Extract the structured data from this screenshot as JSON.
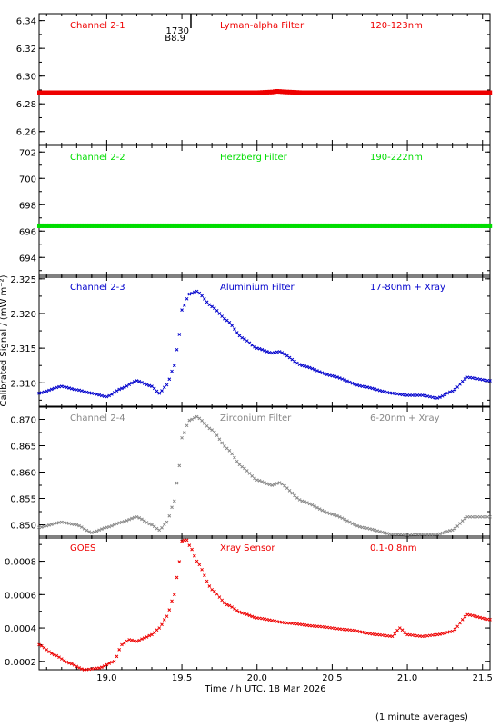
{
  "figure": {
    "ylabel": "Calibrated Signal / (mW m⁻²)",
    "xlabel": "Time / h UTC, 18 Mar 2026",
    "footnote": "(1 minute averages)",
    "marker": {
      "time_label": "1730",
      "value_label": "B8.9"
    },
    "x_ticks": [
      "19.0",
      "19.5",
      "20.0",
      "20.5",
      "21.0",
      "21.5"
    ]
  },
  "chart_data": [
    {
      "type": "scatter",
      "channel": "Channel 2-1",
      "filter": "Lyman-alpha Filter",
      "band": "120-123nm",
      "color": "#ee0000",
      "xlim": [
        18.55,
        21.55
      ],
      "ylim": [
        6.25,
        6.345
      ],
      "yticks": [
        "6.26",
        "6.28",
        "6.30",
        "6.32",
        "6.34"
      ],
      "x": [
        18.55,
        19.0,
        19.5,
        19.9,
        20.0,
        20.1,
        20.13,
        20.2,
        20.3,
        20.5,
        21.0,
        21.55
      ],
      "y": [
        6.288,
        6.288,
        6.288,
        6.288,
        6.288,
        6.2885,
        6.289,
        6.2885,
        6.288,
        6.288,
        6.288,
        6.288
      ]
    },
    {
      "type": "scatter",
      "channel": "Channel 2-2",
      "filter": "Herzberg Filter",
      "band": "190-222nm",
      "color": "#00dd00",
      "xlim": [
        18.55,
        21.55
      ],
      "ylim": [
        692.5,
        702.5
      ],
      "yticks": [
        "694",
        "696",
        "698",
        "700",
        "702"
      ],
      "x": [
        18.55,
        19.0,
        19.5,
        20.0,
        20.5,
        21.0,
        21.55
      ],
      "y": [
        696.4,
        696.4,
        696.4,
        696.4,
        696.4,
        696.4,
        696.4
      ]
    },
    {
      "type": "scatter",
      "channel": "Channel 2-3",
      "filter": "Aluminium Filter",
      "band": "17-80nm + Xray",
      "color": "#0000cc",
      "xlim": [
        18.55,
        21.55
      ],
      "ylim": [
        2.3065,
        2.3255
      ],
      "yticks": [
        "2.310",
        "2.315",
        "2.320",
        "2.325"
      ],
      "x": [
        18.55,
        18.7,
        18.8,
        18.9,
        19.0,
        19.1,
        19.2,
        19.3,
        19.35,
        19.4,
        19.45,
        19.48,
        19.5,
        19.55,
        19.6,
        19.7,
        19.8,
        19.9,
        20.0,
        20.1,
        20.15,
        20.3,
        20.5,
        20.7,
        20.9,
        21.0,
        21.1,
        21.2,
        21.3,
        21.4,
        21.55
      ],
      "y": [
        2.3085,
        2.3095,
        2.309,
        2.3085,
        2.308,
        2.3092,
        2.3103,
        2.3095,
        2.3085,
        2.3097,
        2.3125,
        2.3165,
        2.3205,
        2.3228,
        2.3232,
        2.321,
        2.319,
        2.3165,
        2.315,
        2.3143,
        2.3145,
        2.3125,
        2.311,
        2.3095,
        2.3085,
        2.3082,
        2.3082,
        2.3078,
        2.3088,
        2.3108,
        2.3103
      ]
    },
    {
      "type": "scatter",
      "channel": "Channel 2-4",
      "filter": "Zirconium Filter",
      "band": "6-20nm + Xray",
      "color": "#888888",
      "xlim": [
        18.55,
        21.55
      ],
      "ylim": [
        0.8475,
        0.8725
      ],
      "yticks": [
        "0.850",
        "0.855",
        "0.860",
        "0.865",
        "0.870"
      ],
      "x": [
        18.55,
        18.7,
        18.8,
        18.9,
        19.0,
        19.1,
        19.2,
        19.3,
        19.35,
        19.4,
        19.45,
        19.48,
        19.5,
        19.55,
        19.6,
        19.7,
        19.8,
        19.9,
        20.0,
        20.1,
        20.15,
        20.3,
        20.5,
        20.7,
        20.9,
        21.0,
        21.1,
        21.2,
        21.3,
        21.4,
        21.55
      ],
      "y": [
        0.8495,
        0.8505,
        0.85,
        0.8485,
        0.8495,
        0.8505,
        0.8515,
        0.85,
        0.849,
        0.8505,
        0.8545,
        0.8605,
        0.8665,
        0.8698,
        0.8705,
        0.868,
        0.8645,
        0.861,
        0.8585,
        0.8575,
        0.858,
        0.8545,
        0.852,
        0.8495,
        0.8482,
        0.848,
        0.8482,
        0.8482,
        0.849,
        0.8515,
        0.8515
      ]
    },
    {
      "type": "scatter",
      "channel": "GOES",
      "filter": "Xray Sensor",
      "band": "0.1-0.8nm",
      "color": "#ee0000",
      "xlim": [
        18.55,
        21.55
      ],
      "ylim": [
        0.00015,
        0.00095
      ],
      "yticks": [
        "0.0002",
        "0.0004",
        "0.0006",
        "0.0008"
      ],
      "x": [
        18.55,
        18.65,
        18.75,
        18.85,
        18.95,
        19.05,
        19.1,
        19.15,
        19.2,
        19.25,
        19.3,
        19.35,
        19.4,
        19.45,
        19.48,
        19.5,
        19.53,
        19.56,
        19.6,
        19.7,
        19.8,
        19.9,
        20.0,
        20.2,
        20.4,
        20.6,
        20.8,
        20.9,
        20.95,
        21.0,
        21.1,
        21.2,
        21.3,
        21.4,
        21.55
      ],
      "y": [
        0.0003,
        0.00024,
        0.00019,
        0.00015,
        0.00016,
        0.0002,
        0.0003,
        0.00033,
        0.00032,
        0.00034,
        0.00036,
        0.0004,
        0.00047,
        0.0006,
        0.00078,
        0.00092,
        0.00093,
        0.00088,
        0.0008,
        0.00063,
        0.00054,
        0.00049,
        0.00046,
        0.00043,
        0.00041,
        0.00039,
        0.00036,
        0.00035,
        0.0004,
        0.00036,
        0.00035,
        0.00036,
        0.00038,
        0.00048,
        0.00045
      ]
    }
  ]
}
